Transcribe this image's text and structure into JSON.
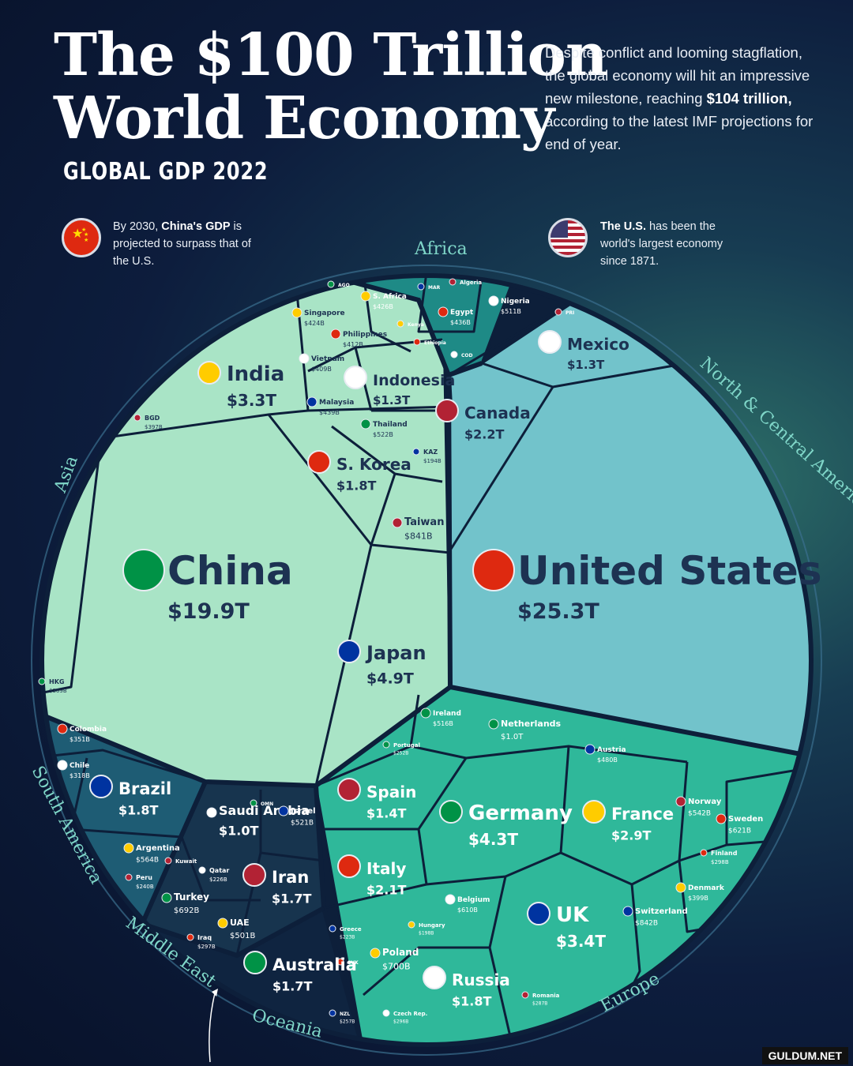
{
  "header": {
    "title_line1": "The $100 Trillion",
    "title_line2": "World Economy",
    "subtitle": "GLOBAL GDP 2022",
    "intro_pre": "Despite conflict and looming stagflation, the global economy will hit an impressive new milestone, reaching ",
    "intro_bold": "$104 trillion,",
    "intro_post": " according to the latest IMF projections for end of year."
  },
  "notes": {
    "china_pre": "By 2030, ",
    "china_bold": "China's GDP",
    "china_post": " is projected to surpass that of the U.S.",
    "us_bold": "The U.S.",
    "us_post": " has been the world's largest economy since 1871."
  },
  "regions": [
    "Africa",
    "North & Central America",
    "Asia",
    "South America",
    "Middle East",
    "Oceania",
    "Europe"
  ],
  "countries": [
    {
      "name": "United States",
      "value": "$25.3T",
      "region": "North & Central America"
    },
    {
      "name": "Mexico",
      "value": "$1.3T",
      "region": "North & Central America"
    },
    {
      "name": "Canada",
      "value": "$2.2T",
      "region": "North & Central America"
    },
    {
      "name": "China",
      "value": "$19.9T",
      "region": "Asia"
    },
    {
      "name": "Japan",
      "value": "$4.9T",
      "region": "Asia"
    },
    {
      "name": "India",
      "value": "$3.3T",
      "region": "Asia"
    },
    {
      "name": "S. Korea",
      "value": "$1.8T",
      "region": "Asia"
    },
    {
      "name": "Indonesia",
      "value": "$1.3T",
      "region": "Asia"
    },
    {
      "name": "Taiwan",
      "value": "$841B",
      "region": "Asia"
    },
    {
      "name": "Thailand",
      "value": "$522B",
      "region": "Asia"
    },
    {
      "name": "Malaysia",
      "value": "$439B",
      "region": "Asia"
    },
    {
      "name": "Singapore",
      "value": "$424B",
      "region": "Asia"
    },
    {
      "name": "Philippines",
      "value": "$412B",
      "region": "Asia"
    },
    {
      "name": "Vietnam",
      "value": "$409B",
      "region": "Asia"
    },
    {
      "name": "BGD",
      "value": "$397B",
      "region": "Asia"
    },
    {
      "name": "HKG",
      "value": "$369B",
      "region": "Asia"
    },
    {
      "name": "KAZ",
      "value": "$194B",
      "region": "Asia"
    },
    {
      "name": "S. Africa",
      "value": "$426B",
      "region": "Africa"
    },
    {
      "name": "Egypt",
      "value": "$436B",
      "region": "Africa"
    },
    {
      "name": "Nigeria",
      "value": "$511B",
      "region": "Africa"
    },
    {
      "name": "Algeria",
      "value": "",
      "region": "Africa"
    },
    {
      "name": "AGO",
      "value": "",
      "region": "Africa"
    },
    {
      "name": "MAR",
      "value": "",
      "region": "Africa"
    },
    {
      "name": "Kenya",
      "value": "",
      "region": "Africa"
    },
    {
      "name": "Ethiopia",
      "value": "",
      "region": "Africa"
    },
    {
      "name": "COD",
      "value": "",
      "region": "Africa"
    },
    {
      "name": "PRI",
      "value": "",
      "region": "North & Central America"
    },
    {
      "name": "Germany",
      "value": "$4.3T",
      "region": "Europe"
    },
    {
      "name": "UK",
      "value": "$3.4T",
      "region": "Europe"
    },
    {
      "name": "France",
      "value": "$2.9T",
      "region": "Europe"
    },
    {
      "name": "Italy",
      "value": "$2.1T",
      "region": "Europe"
    },
    {
      "name": "Russia",
      "value": "$1.8T",
      "region": "Europe"
    },
    {
      "name": "Spain",
      "value": "$1.4T",
      "region": "Europe"
    },
    {
      "name": "Netherlands",
      "value": "$1.0T",
      "region": "Europe"
    },
    {
      "name": "Switzerland",
      "value": "$842B",
      "region": "Europe"
    },
    {
      "name": "Poland",
      "value": "$700B",
      "region": "Europe"
    },
    {
      "name": "Sweden",
      "value": "$621B",
      "region": "Europe"
    },
    {
      "name": "Belgium",
      "value": "$610B",
      "region": "Europe"
    },
    {
      "name": "Norway",
      "value": "$542B",
      "region": "Europe"
    },
    {
      "name": "Ireland",
      "value": "$516B",
      "region": "Europe"
    },
    {
      "name": "Austria",
      "value": "$480B",
      "region": "Europe"
    },
    {
      "name": "Denmark",
      "value": "$399B",
      "region": "Europe"
    },
    {
      "name": "Finland",
      "value": "$298B",
      "region": "Europe"
    },
    {
      "name": "Czech Rep.",
      "value": "$296B",
      "region": "Europe"
    },
    {
      "name": "Romania",
      "value": "$287B",
      "region": "Europe"
    },
    {
      "name": "Portugal",
      "value": "$252B",
      "region": "Europe"
    },
    {
      "name": "Greece",
      "value": "$223B",
      "region": "Europe"
    },
    {
      "name": "Hungary",
      "value": "$198B",
      "region": "Europe"
    },
    {
      "name": "SVK",
      "value": "",
      "region": "Europe"
    },
    {
      "name": "Saudi Arabia",
      "value": "$1.0T",
      "region": "Middle East"
    },
    {
      "name": "Iran",
      "value": "$1.7T",
      "region": "Middle East"
    },
    {
      "name": "Turkey",
      "value": "$692B",
      "region": "Middle East"
    },
    {
      "name": "Israel",
      "value": "$521B",
      "region": "Middle East"
    },
    {
      "name": "UAE",
      "value": "$501B",
      "region": "Middle East"
    },
    {
      "name": "Iraq",
      "value": "$297B",
      "region": "Middle East"
    },
    {
      "name": "Qatar",
      "value": "$226B",
      "region": "Middle East"
    },
    {
      "name": "Kuwait",
      "value": "",
      "region": "Middle East"
    },
    {
      "name": "OMN",
      "value": "",
      "region": "Middle East"
    },
    {
      "name": "Brazil",
      "value": "$1.8T",
      "region": "South America"
    },
    {
      "name": "Argentina",
      "value": "$564B",
      "region": "South America"
    },
    {
      "name": "Colombia",
      "value": "$351B",
      "region": "South America"
    },
    {
      "name": "Chile",
      "value": "$318B",
      "region": "South America"
    },
    {
      "name": "Peru",
      "value": "$240B",
      "region": "South America"
    },
    {
      "name": "Australia",
      "value": "$1.7T",
      "region": "Oceania"
    },
    {
      "name": "NZL",
      "value": "$257B",
      "region": "Oceania"
    }
  ],
  "colors": {
    "north_america": "#72c3cb",
    "asia": "#a9e4c6",
    "africa": "#1e8a86",
    "europe": "#2fb89a",
    "south_america": "#1e5c74",
    "middle_east": "#17344e",
    "oceania": "#0f2440",
    "borders": "#0d1f3a"
  },
  "watermark": "GULDUM.NET"
}
